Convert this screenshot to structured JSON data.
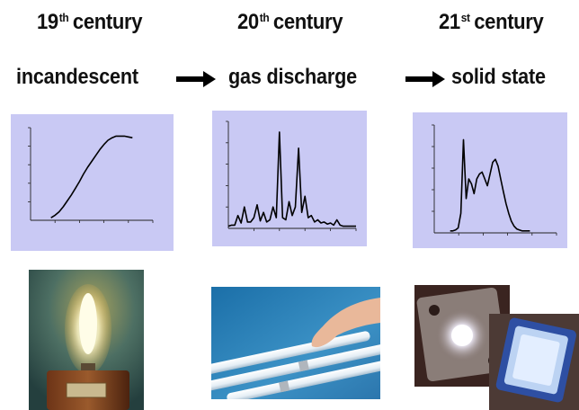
{
  "columns": [
    {
      "century_num": "19",
      "century_suffix": "th",
      "century_word": "century",
      "technology": "incandescent"
    },
    {
      "century_num": "20",
      "century_suffix": "th",
      "century_word": "century",
      "technology": "gas discharge"
    },
    {
      "century_num": "21",
      "century_suffix": "st",
      "century_word": "century",
      "technology": "solid state"
    }
  ],
  "colors": {
    "chart_background": "#c9c9f4",
    "curve": "#000000",
    "text": "#111111"
  },
  "icons": {
    "arrow_1": "right-arrow-icon",
    "arrow_2": "right-arrow-icon"
  },
  "photos": [
    {
      "subject": "incandescent light bulb on wooden base"
    },
    {
      "subject": "hand holding fluorescent tubes"
    },
    {
      "subject": "solid state LED light chips"
    }
  ],
  "chart_data": [
    {
      "type": "line",
      "title": "",
      "xlabel": "",
      "ylabel": "",
      "x": [
        0,
        1,
        2,
        3,
        4,
        5,
        6,
        7,
        8,
        9,
        10,
        11,
        12,
        13,
        14,
        15,
        16,
        17,
        18,
        19,
        20
      ],
      "y": [
        0.03,
        0.06,
        0.1,
        0.16,
        0.23,
        0.3,
        0.38,
        0.46,
        0.55,
        0.63,
        0.7,
        0.77,
        0.84,
        0.9,
        0.95,
        0.98,
        1.0,
        1.0,
        1.0,
        0.99,
        0.98
      ],
      "xlim": [
        -5,
        25
      ],
      "ylim": [
        0,
        1.1
      ]
    },
    {
      "type": "line",
      "title": "",
      "xlabel": "",
      "ylabel": "",
      "x": [
        0,
        1,
        2,
        3,
        4,
        5,
        6,
        7,
        8,
        9,
        10,
        11,
        12,
        13,
        14,
        15,
        16,
        17,
        18,
        19,
        20,
        21,
        22,
        23,
        24,
        25,
        26,
        27,
        28,
        29,
        30,
        31,
        32,
        33,
        34,
        35,
        36,
        37,
        38,
        39,
        40
      ],
      "y": [
        0.02,
        0.03,
        0.03,
        0.12,
        0.05,
        0.2,
        0.06,
        0.06,
        0.1,
        0.22,
        0.07,
        0.15,
        0.06,
        0.08,
        0.2,
        0.1,
        0.9,
        0.1,
        0.08,
        0.25,
        0.12,
        0.2,
        0.75,
        0.15,
        0.3,
        0.1,
        0.12,
        0.06,
        0.08,
        0.05,
        0.06,
        0.04,
        0.05,
        0.03,
        0.08,
        0.03,
        0.02,
        0.02,
        0.02,
        0.02,
        0.02
      ],
      "xlim": [
        0,
        40
      ],
      "ylim": [
        0,
        1.0
      ]
    },
    {
      "type": "line",
      "title": "",
      "xlabel": "",
      "ylabel": "",
      "x": [
        0,
        1,
        2,
        3,
        4,
        5,
        6,
        7,
        8,
        9,
        10,
        11,
        12,
        13,
        14,
        15,
        16,
        17,
        18,
        19,
        20,
        21,
        22,
        23,
        24,
        25,
        26,
        27,
        28,
        29,
        30
      ],
      "y": [
        0.02,
        0.02,
        0.03,
        0.05,
        0.2,
        0.95,
        0.35,
        0.55,
        0.5,
        0.4,
        0.55,
        0.6,
        0.62,
        0.55,
        0.48,
        0.6,
        0.72,
        0.75,
        0.68,
        0.55,
        0.42,
        0.3,
        0.2,
        0.12,
        0.07,
        0.04,
        0.03,
        0.02,
        0.02,
        0.02,
        0.02
      ],
      "xlim": [
        -6,
        40
      ],
      "ylim": [
        0,
        1.1
      ]
    }
  ]
}
